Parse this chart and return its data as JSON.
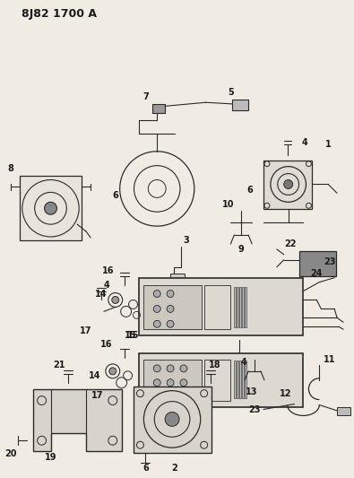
{
  "title": "8J82 1700 A",
  "bg_color": "#f0ece4",
  "line_color": "#2a2a2a",
  "text_color": "#1a1a1a",
  "figsize": [
    3.95,
    5.33
  ],
  "dpi": 100
}
